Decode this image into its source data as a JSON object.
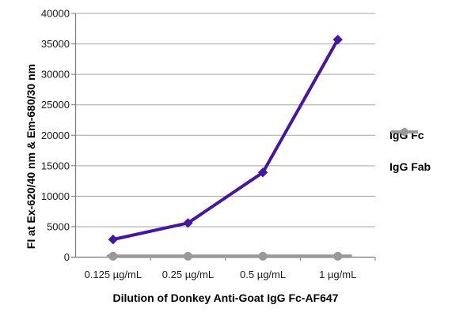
{
  "colors": {
    "igg_fc": "#4814A2",
    "igg_fab": "#999999",
    "grid": "#A6A6A6",
    "axis": "#7A7A7A",
    "text": "#1A1A1A",
    "background": "#FFFFFF"
  },
  "chart_data": {
    "type": "line",
    "categories": [
      "0.125 µg/mL",
      "0.25 µg/mL",
      "0.5 µg/mL",
      "1 µg/mL"
    ],
    "series": [
      {
        "name": "IgG Fc",
        "marker": "diamond",
        "color": "#4814A2",
        "values": [
          2900,
          5600,
          13900,
          35700
        ]
      },
      {
        "name": "IgG Fab",
        "marker": "circle",
        "color": "#999999",
        "values": [
          150,
          150,
          150,
          150
        ]
      }
    ],
    "title": "",
    "xlabel": "Dilution of Donkey Anti-Goat IgG Fc-AF647",
    "ylabel": "FI at Ex-620/40 nm & Em-680/30 nm",
    "ylim": [
      0,
      40000
    ],
    "ytick_step": 5000,
    "yticks": [
      0,
      5000,
      10000,
      15000,
      20000,
      25000,
      30000,
      35000,
      40000
    ],
    "ytick_labels": [
      "0",
      "5000",
      "10000",
      "15000",
      "20000",
      "25000",
      "30000",
      "35000",
      "40000"
    ],
    "grid": true,
    "legend_position": "right"
  }
}
